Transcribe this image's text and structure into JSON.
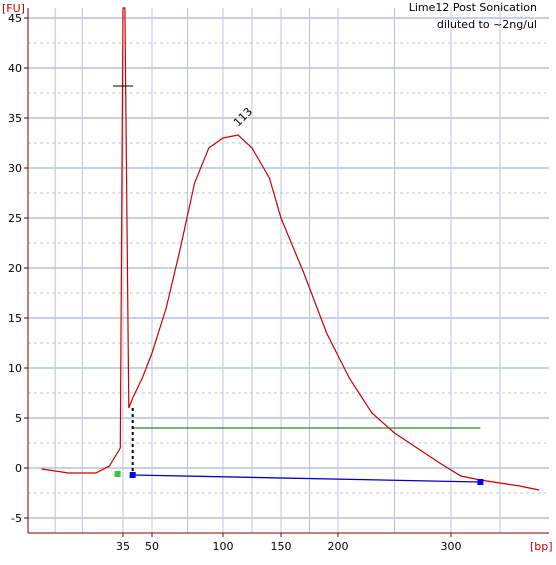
{
  "chart_data": {
    "type": "line",
    "title": "Lime12 Post Sonication",
    "subtitle": "diluted to ~2ng/ul",
    "ylabel": "[FU]",
    "xlabel": "[bp]",
    "ylim": [
      -6.5,
      46
    ],
    "y_ticks": [
      -5,
      0,
      5,
      10,
      15,
      20,
      25,
      30,
      35,
      40,
      45
    ],
    "x_ticks": [
      {
        "label": "35",
        "value": 35
      },
      {
        "label": "50",
        "value": 50
      },
      {
        "label": "100",
        "value": 100
      },
      {
        "label": "150",
        "value": 150
      },
      {
        "label": "200",
        "value": 200
      },
      {
        "label": "300",
        "value": 300
      }
    ],
    "grid": true,
    "peak_label": "113",
    "series": [
      {
        "color": "#cc0000",
        "x": [
          5,
          15,
          25,
          30,
          34,
          35,
          36,
          38,
          40,
          45,
          50,
          60,
          70,
          80,
          90,
          100,
          113,
          125,
          140,
          150,
          170,
          190,
          210,
          230,
          250,
          270,
          290,
          310,
          330,
          350,
          370,
          390
        ],
        "values": [
          -0.1,
          -0.5,
          -0.5,
          0.2,
          2.0,
          46,
          46,
          6.0,
          7.0,
          9.0,
          11.5,
          16.0,
          22.0,
          28.5,
          32.0,
          33.0,
          33.3,
          32.0,
          29.0,
          25.0,
          19.5,
          13.5,
          9.0,
          5.5,
          3.5,
          2.0,
          0.5,
          -0.8,
          -1.2,
          -1.5,
          -1.8,
          -2.2
        ]
      }
    ],
    "markers": [
      {
        "name": "lower-marker",
        "x": 33,
        "y": -0.6,
        "color": "#33cc33"
      },
      {
        "name": "region-start",
        "x": 40,
        "y": -0.7,
        "color": "#0000ff"
      },
      {
        "name": "region-end",
        "x": 330,
        "y": -1.4,
        "color": "#0000ff"
      }
    ],
    "baseline": {
      "x_start": 40,
      "y_start": -0.7,
      "x_end": 330,
      "y_end": -1.4,
      "color": "#0000cc"
    },
    "threshold": {
      "y": 4.0,
      "x_start": 40,
      "x_end": 330,
      "color": "#006600"
    }
  }
}
